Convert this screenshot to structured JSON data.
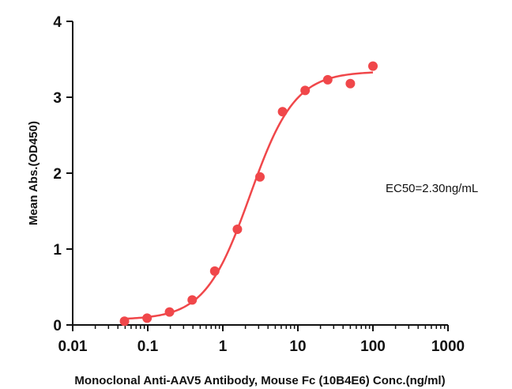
{
  "chart_data": {
    "type": "scatter",
    "title": "",
    "xlabel": "Monoclonal Anti-AAV5 Antibody, Mouse Fc (10B4E6) Conc.(ng/ml)",
    "ylabel": "Mean Abs.(OD450)",
    "x_scale": "log",
    "xlim": [
      0.01,
      1000
    ],
    "ylim": [
      0,
      4
    ],
    "x_ticks": [
      "0.01",
      "0.1",
      "1",
      "10",
      "100",
      "1000"
    ],
    "y_ticks": [
      "0",
      "1",
      "2",
      "3",
      "4"
    ],
    "grid": false,
    "annotation": "EC50=2.30ng/mL",
    "color": "#f0474a",
    "series": [
      {
        "x": [
          0.049,
          0.098,
          0.195,
          0.391,
          0.781,
          1.5625,
          3.125,
          6.25,
          12.5,
          25,
          50,
          100
        ],
        "y": [
          0.05,
          0.09,
          0.17,
          0.33,
          0.71,
          1.26,
          1.95,
          2.81,
          3.09,
          3.23,
          3.18,
          3.41
        ]
      }
    ],
    "fit": {
      "model": "4PL",
      "bottom": 0.07,
      "top": 3.34,
      "ec50": 2.3,
      "hill": 1.45
    }
  }
}
